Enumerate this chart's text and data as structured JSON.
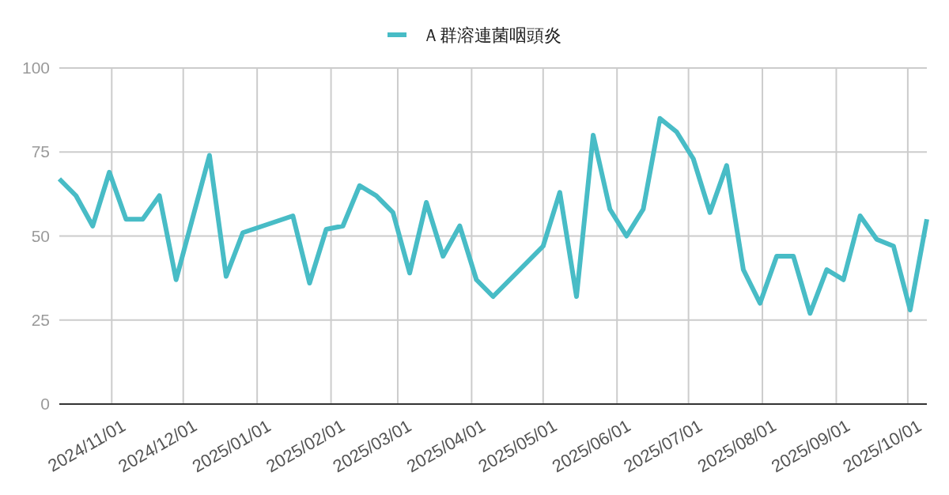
{
  "chart_data": {
    "type": "line",
    "legend": "top",
    "grid": true,
    "series": [
      {
        "name": "Ａ群溶連菌咽頭炎",
        "color": "#48bcc6",
        "values": [
          67,
          62,
          53,
          69,
          55,
          55,
          62,
          37,
          74,
          38,
          51,
          56,
          36,
          52,
          53,
          65,
          62,
          57,
          39,
          60,
          44,
          53,
          37,
          32,
          47,
          63,
          32,
          80,
          58,
          50,
          58,
          85,
          81,
          73,
          57,
          71,
          40,
          30,
          44,
          44,
          27,
          40,
          37,
          56,
          49,
          47,
          28,
          55
        ]
      }
    ],
    "x": [
      "2024-10-10",
      "2024-10-17",
      "2024-10-24",
      "2024-10-31",
      "2024-11-07",
      "2024-11-14",
      "2024-11-21",
      "2024-11-28",
      "2024-12-12",
      "2024-12-19",
      "2024-12-26",
      "2025-01-16",
      "2025-01-23",
      "2025-01-30",
      "2025-02-06",
      "2025-02-13",
      "2025-02-20",
      "2025-02-27",
      "2025-03-06",
      "2025-03-13",
      "2025-03-20",
      "2025-03-27",
      "2025-04-03",
      "2025-04-10",
      "2025-05-01",
      "2025-05-08",
      "2025-05-15",
      "2025-05-22",
      "2025-05-29",
      "2025-06-05",
      "2025-06-12",
      "2025-06-19",
      "2025-06-26",
      "2025-07-03",
      "2025-07-10",
      "2025-07-17",
      "2025-07-24",
      "2025-07-31",
      "2025-08-07",
      "2025-08-14",
      "2025-08-21",
      "2025-08-28",
      "2025-09-04",
      "2025-09-11",
      "2025-09-18",
      "2025-09-25",
      "2025-10-02",
      "2025-10-09"
    ],
    "xlim": [
      "2024-10-10",
      "2025-10-09"
    ],
    "xticks": [
      {
        "value": "2024-11-01",
        "label": "2024/11/01"
      },
      {
        "value": "2024-12-01",
        "label": "2024/12/01"
      },
      {
        "value": "2025-01-01",
        "label": "2025/01/01"
      },
      {
        "value": "2025-02-01",
        "label": "2025/02/01"
      },
      {
        "value": "2025-03-01",
        "label": "2025/03/01"
      },
      {
        "value": "2025-04-01",
        "label": "2025/04/01"
      },
      {
        "value": "2025-05-01",
        "label": "2025/05/01"
      },
      {
        "value": "2025-06-01",
        "label": "2025/06/01"
      },
      {
        "value": "2025-07-01",
        "label": "2025/07/01"
      },
      {
        "value": "2025-08-01",
        "label": "2025/08/01"
      },
      {
        "value": "2025-09-01",
        "label": "2025/09/01"
      },
      {
        "value": "2025-10-01",
        "label": "2025/10/01"
      }
    ],
    "ylim": [
      0,
      100
    ],
    "yticks": [
      0,
      25,
      50,
      75,
      100
    ]
  }
}
